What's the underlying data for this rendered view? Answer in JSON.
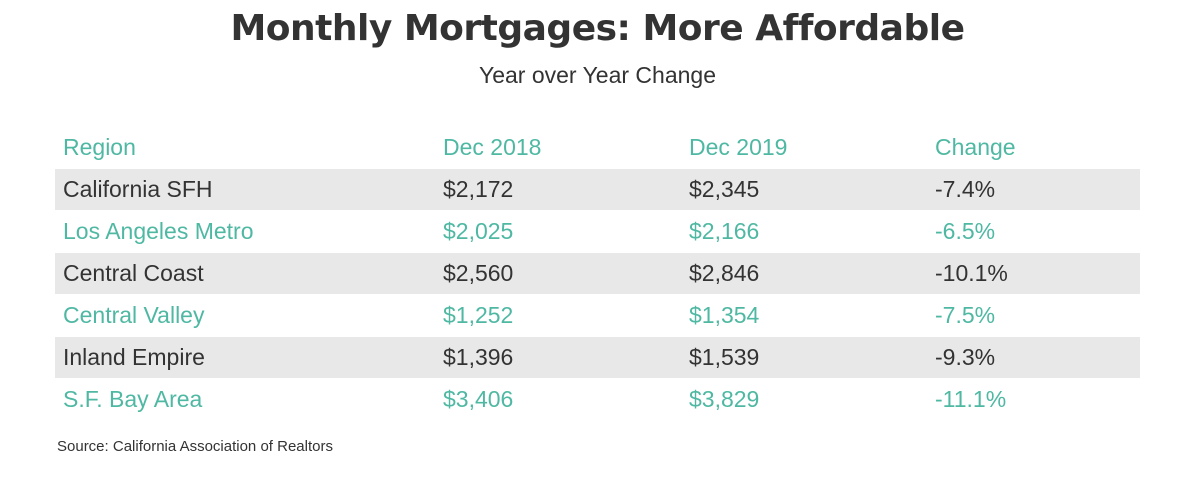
{
  "title": "Monthly Mortgages: More Affordable",
  "subtitle": "Year over Year Change",
  "source": "Source:  California Association of Realtors",
  "colors": {
    "accent": "#4fb8a3",
    "text": "#333333",
    "row_shade": "#e8e8e8"
  },
  "chart_data": {
    "type": "table",
    "title": "Monthly Mortgages: More Affordable",
    "subtitle": "Year over Year Change",
    "columns": [
      "Region",
      "Dec 2018",
      "Dec 2019",
      "Change"
    ],
    "rows": [
      [
        "California SFH",
        "$2,172",
        "$2,345",
        "-7.4%"
      ],
      [
        "Los Angeles Metro",
        "$2,025",
        "$2,166",
        "-6.5%"
      ],
      [
        "Central Coast",
        "$2,560",
        "$2,846",
        "-10.1%"
      ],
      [
        "Central Valley",
        "$1,252",
        "$1,354",
        "-7.5%"
      ],
      [
        "Inland Empire",
        "$1,396",
        "$1,539",
        "-9.3%"
      ],
      [
        "S.F. Bay Area",
        "$3,406",
        "$3,829",
        "-11.1%"
      ]
    ]
  }
}
